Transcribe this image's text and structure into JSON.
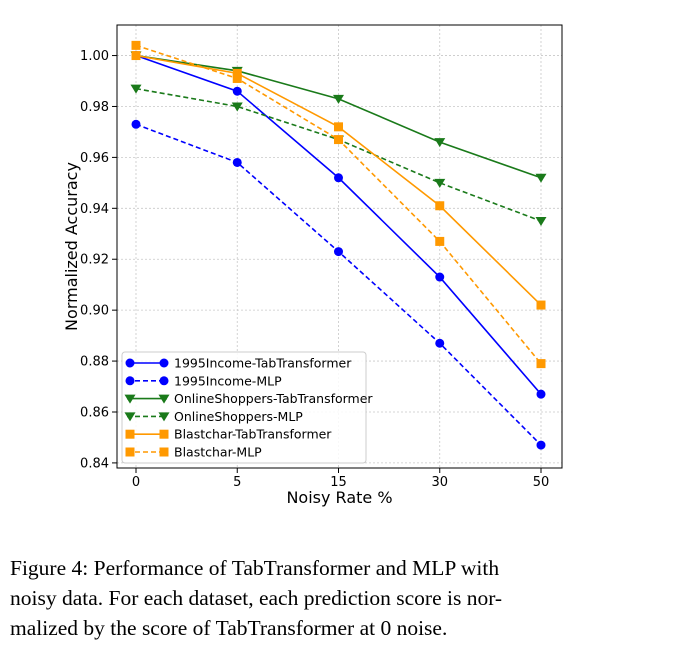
{
  "chart_data": {
    "type": "line",
    "xlabel": "Noisy Rate %",
    "ylabel": "Normalized Accuracy",
    "categories": [
      "0",
      "5",
      "15",
      "30",
      "50"
    ],
    "ylim": [
      0.838,
      1.012
    ],
    "yticks": [
      "0.84",
      "0.86",
      "0.88",
      "0.90",
      "0.92",
      "0.94",
      "0.96",
      "0.98",
      "1.00"
    ],
    "grid": true,
    "legend_position": "lower-left",
    "series": [
      {
        "name": "1995Income-TabTransformer",
        "color": "#0000ff",
        "linestyle": "solid",
        "marker": "circle",
        "values": [
          1.0,
          0.986,
          0.952,
          0.913,
          0.867
        ]
      },
      {
        "name": "1995Income-MLP",
        "color": "#0000ff",
        "linestyle": "dashed",
        "marker": "circle",
        "values": [
          0.973,
          0.958,
          0.923,
          0.887,
          0.847
        ]
      },
      {
        "name": "OnlineShoppers-TabTransformer",
        "color": "#1a7a1a",
        "linestyle": "solid",
        "marker": "triangle-down",
        "values": [
          1.0,
          0.994,
          0.983,
          0.966,
          0.952
        ]
      },
      {
        "name": "OnlineShoppers-MLP",
        "color": "#1a7a1a",
        "linestyle": "dashed",
        "marker": "triangle-down",
        "values": [
          0.987,
          0.98,
          0.967,
          0.95,
          0.935
        ]
      },
      {
        "name": "Blastchar-TabTransformer",
        "color": "#ff9900",
        "linestyle": "solid",
        "marker": "square",
        "values": [
          1.0,
          0.993,
          0.972,
          0.941,
          0.902
        ]
      },
      {
        "name": "Blastchar-MLP",
        "color": "#ff9900",
        "linestyle": "dashed",
        "marker": "square",
        "values": [
          1.004,
          0.991,
          0.967,
          0.927,
          0.879
        ]
      }
    ]
  },
  "caption": {
    "line1": "Figure 4: Performance of TabTransformer and MLP with",
    "line2": "noisy data. For each dataset, each prediction score is nor-",
    "line3": "malized by the score of TabTransformer at 0 noise."
  }
}
